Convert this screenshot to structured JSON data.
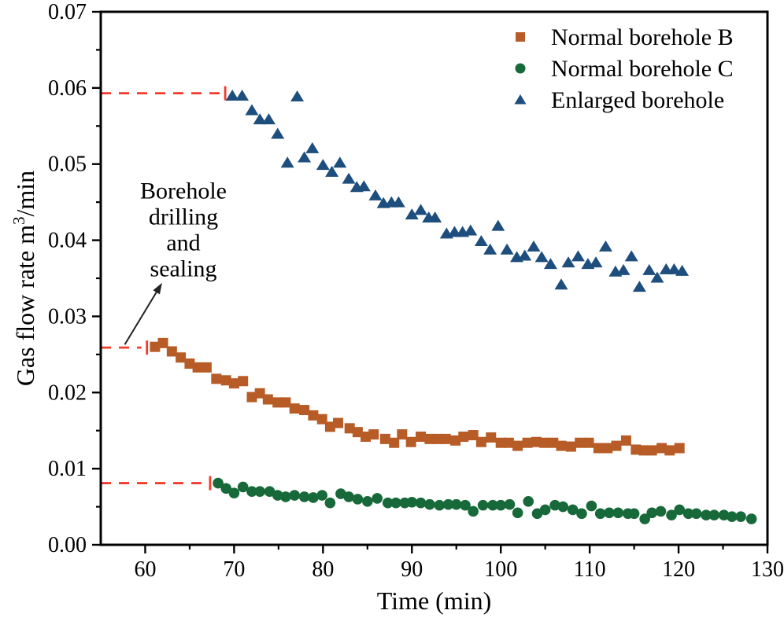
{
  "figure": {
    "background": "#ffffff"
  },
  "chart_data": {
    "type": "scatter",
    "title": "",
    "xlabel": "Time (min)",
    "ylabel": "Gas flow rate m3/min",
    "ylabel_pre": "Gas flow rate m",
    "ylabel_sup": "3",
    "ylabel_post": "/min",
    "xlim": [
      55,
      130
    ],
    "ylim": [
      0,
      0.07
    ],
    "x_major_ticks": [
      60,
      70,
      80,
      90,
      100,
      110,
      120,
      130
    ],
    "x_minor_step": 5,
    "y_major_step": 0.01,
    "y_minor_step": 0.005,
    "y_tick_decimals": 2,
    "grid": false,
    "legend_position": "top-right-inside",
    "axis_color": "#000000",
    "ref_line_color": "#f23b2b",
    "ref_lines": [
      {
        "y": 0.0593,
        "x_start": 55,
        "x_end": 69.0
      },
      {
        "y": 0.0259,
        "x_start": 55,
        "x_end": 60.2
      },
      {
        "y": 0.0081,
        "x_start": 55,
        "x_end": 67.3
      }
    ],
    "annotation": {
      "lines": [
        "Borehole",
        "drilling",
        "and",
        "sealing"
      ],
      "x": 64.3,
      "y": 0.0455,
      "arrow": {
        "from_x": 57.7,
        "from_y": 0.0263,
        "to_x": 61.9,
        "to_y": 0.0344
      }
    },
    "series": [
      {
        "name": "Normal borehole B",
        "marker": "square",
        "color": "#b85c27",
        "points": [
          [
            61.1,
            0.026
          ],
          [
            62,
            0.0265
          ],
          [
            63,
            0.0254
          ],
          [
            64,
            0.0246
          ],
          [
            65,
            0.0238
          ],
          [
            65.9,
            0.0233
          ],
          [
            66.9,
            0.0233
          ],
          [
            68,
            0.0218
          ],
          [
            69.1,
            0.0216
          ],
          [
            70,
            0.0212
          ],
          [
            71,
            0.0215
          ],
          [
            72,
            0.0194
          ],
          [
            72.9,
            0.0199
          ],
          [
            73.8,
            0.0191
          ],
          [
            74.9,
            0.0187
          ],
          [
            75.8,
            0.0187
          ],
          [
            76.8,
            0.0179
          ],
          [
            77.9,
            0.0177
          ],
          [
            78.9,
            0.017
          ],
          [
            79.9,
            0.0165
          ],
          [
            80.8,
            0.0155
          ],
          [
            81.7,
            0.016
          ],
          [
            83,
            0.0153
          ],
          [
            83.9,
            0.0148
          ],
          [
            84.8,
            0.0142
          ],
          [
            85.7,
            0.0145
          ],
          [
            87,
            0.0139
          ],
          [
            88,
            0.0134
          ],
          [
            88.9,
            0.0145
          ],
          [
            89.9,
            0.0135
          ],
          [
            91,
            0.0142
          ],
          [
            92,
            0.0139
          ],
          [
            92.9,
            0.0139
          ],
          [
            93.8,
            0.0139
          ],
          [
            94.9,
            0.0137
          ],
          [
            95.8,
            0.0142
          ],
          [
            96.9,
            0.0144
          ],
          [
            97.8,
            0.0135
          ],
          [
            98.9,
            0.0141
          ],
          [
            100,
            0.0134
          ],
          [
            100.9,
            0.0134
          ],
          [
            101.9,
            0.013
          ],
          [
            103,
            0.0134
          ],
          [
            104,
            0.0135
          ],
          [
            104.9,
            0.0134
          ],
          [
            105.9,
            0.0134
          ],
          [
            106.8,
            0.013
          ],
          [
            107.9,
            0.0129
          ],
          [
            108.9,
            0.0134
          ],
          [
            109.9,
            0.0134
          ],
          [
            111,
            0.0127
          ],
          [
            112,
            0.0127
          ],
          [
            113,
            0.013
          ],
          [
            114.1,
            0.0137
          ],
          [
            115.2,
            0.0125
          ],
          [
            116.1,
            0.0124
          ],
          [
            117,
            0.0124
          ],
          [
            118.1,
            0.0127
          ],
          [
            119,
            0.0124
          ],
          [
            120.1,
            0.0127
          ]
        ]
      },
      {
        "name": "Normal borehole C",
        "marker": "circle",
        "color": "#17693a",
        "points": [
          [
            68.2,
            0.0081
          ],
          [
            69.1,
            0.0074
          ],
          [
            70,
            0.0068
          ],
          [
            71,
            0.0076
          ],
          [
            72,
            0.007
          ],
          [
            72.9,
            0.007
          ],
          [
            74,
            0.007
          ],
          [
            74.9,
            0.0065
          ],
          [
            75.8,
            0.0063
          ],
          [
            76.8,
            0.0065
          ],
          [
            77.9,
            0.0063
          ],
          [
            78.9,
            0.0062
          ],
          [
            79.9,
            0.0065
          ],
          [
            80.8,
            0.0055
          ],
          [
            82,
            0.0067
          ],
          [
            82.9,
            0.0063
          ],
          [
            83.9,
            0.006
          ],
          [
            85,
            0.0057
          ],
          [
            86.1,
            0.0061
          ],
          [
            87.3,
            0.0055
          ],
          [
            88.2,
            0.0055
          ],
          [
            89.2,
            0.0055
          ],
          [
            90,
            0.0056
          ],
          [
            91,
            0.0055
          ],
          [
            92,
            0.0053
          ],
          [
            93.1,
            0.0052
          ],
          [
            94.1,
            0.0053
          ],
          [
            95,
            0.0053
          ],
          [
            96,
            0.0052
          ],
          [
            96.9,
            0.0044
          ],
          [
            98,
            0.0052
          ],
          [
            99.1,
            0.0052
          ],
          [
            100,
            0.0052
          ],
          [
            101,
            0.0053
          ],
          [
            101.9,
            0.0042
          ],
          [
            103.1,
            0.0057
          ],
          [
            104.1,
            0.0041
          ],
          [
            105,
            0.0046
          ],
          [
            106.1,
            0.0052
          ],
          [
            107,
            0.005
          ],
          [
            108.1,
            0.0046
          ],
          [
            109.1,
            0.0041
          ],
          [
            110.2,
            0.0051
          ],
          [
            111.2,
            0.0041
          ],
          [
            112.2,
            0.0042
          ],
          [
            113.2,
            0.0042
          ],
          [
            114.3,
            0.0041
          ],
          [
            115,
            0.0041
          ],
          [
            116.2,
            0.0034
          ],
          [
            117,
            0.0042
          ],
          [
            118,
            0.0044
          ],
          [
            119.2,
            0.0039
          ],
          [
            120.1,
            0.0046
          ],
          [
            121.1,
            0.0041
          ],
          [
            122,
            0.0041
          ],
          [
            123.1,
            0.0039
          ],
          [
            124,
            0.0039
          ],
          [
            125.1,
            0.0039
          ],
          [
            126,
            0.0037
          ],
          [
            127,
            0.0037
          ],
          [
            128.2,
            0.0034
          ]
        ]
      },
      {
        "name": "Enlarged borehole",
        "marker": "triangle",
        "color": "#1e4e7d",
        "points": [
          [
            69.8,
            0.059
          ],
          [
            70.9,
            0.059
          ],
          [
            72,
            0.0571
          ],
          [
            72.9,
            0.0559
          ],
          [
            73.9,
            0.0559
          ],
          [
            74.9,
            0.054
          ],
          [
            76,
            0.0502
          ],
          [
            77.1,
            0.0589
          ],
          [
            77.9,
            0.0509
          ],
          [
            78.8,
            0.0521
          ],
          [
            80,
            0.0499
          ],
          [
            81,
            0.049
          ],
          [
            81.9,
            0.0502
          ],
          [
            82.9,
            0.0481
          ],
          [
            83.8,
            0.047
          ],
          [
            84.6,
            0.0471
          ],
          [
            85.9,
            0.0459
          ],
          [
            86.8,
            0.0449
          ],
          [
            87.7,
            0.045
          ],
          [
            88.5,
            0.045
          ],
          [
            90,
            0.0434
          ],
          [
            91,
            0.044
          ],
          [
            91.9,
            0.043
          ],
          [
            92.6,
            0.043
          ],
          [
            93.9,
            0.0409
          ],
          [
            94.8,
            0.0411
          ],
          [
            95.7,
            0.0411
          ],
          [
            96.6,
            0.0413
          ],
          [
            97.8,
            0.0399
          ],
          [
            98.8,
            0.0388
          ],
          [
            99.7,
            0.0419
          ],
          [
            100.7,
            0.0388
          ],
          [
            101.8,
            0.0378
          ],
          [
            102.7,
            0.038
          ],
          [
            103.7,
            0.0392
          ],
          [
            104.6,
            0.0378
          ],
          [
            105.6,
            0.0369
          ],
          [
            106.8,
            0.0342
          ],
          [
            107.6,
            0.0371
          ],
          [
            108.7,
            0.0379
          ],
          [
            109.8,
            0.0369
          ],
          [
            110.7,
            0.0371
          ],
          [
            111.8,
            0.0392
          ],
          [
            112.9,
            0.0359
          ],
          [
            113.8,
            0.0361
          ],
          [
            114.7,
            0.0379
          ],
          [
            115.6,
            0.0339
          ],
          [
            116.7,
            0.0361
          ],
          [
            117.6,
            0.0351
          ],
          [
            118.6,
            0.0362
          ],
          [
            119.5,
            0.0362
          ],
          [
            120.4,
            0.036
          ]
        ]
      }
    ]
  }
}
